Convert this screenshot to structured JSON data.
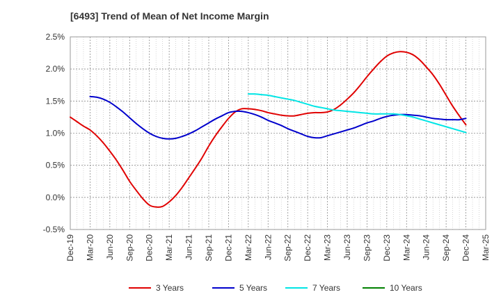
{
  "chart_data": {
    "type": "line",
    "title": "[6493]  Trend of Mean of Net Income Margin",
    "xlabel": "",
    "ylabel": "",
    "categories": [
      "Dec-19",
      "Mar-20",
      "Jun-20",
      "Sep-20",
      "Dec-20",
      "Mar-21",
      "Jun-21",
      "Sep-21",
      "Dec-21",
      "Mar-22",
      "Jun-22",
      "Sep-22",
      "Dec-22",
      "Mar-23",
      "Jun-23",
      "Sep-23",
      "Dec-23",
      "Mar-24",
      "Jun-24",
      "Sep-24",
      "Dec-24",
      "Mar-25"
    ],
    "y_ticks": [
      "-0.5%",
      "0.0%",
      "0.5%",
      "1.0%",
      "1.5%",
      "2.0%",
      "2.5%"
    ],
    "ylim": [
      -0.5,
      2.5
    ],
    "grid": true,
    "legend_position": "bottom",
    "series": [
      {
        "name": "3 Years",
        "color": "#e00000",
        "x": [
          "2019-12",
          "2020-01",
          "2020-02",
          "2020-03",
          "2020-04",
          "2020-05",
          "2020-06",
          "2020-07",
          "2020-08",
          "2020-09",
          "2020-10",
          "2020-11",
          "2020-12",
          "2021-01",
          "2021-02",
          "2021-03",
          "2021-04",
          "2021-05",
          "2021-06",
          "2021-07",
          "2021-08",
          "2021-09",
          "2021-10",
          "2021-11",
          "2021-12",
          "2022-01",
          "2022-02",
          "2022-03",
          "2022-04",
          "2022-05",
          "2022-06",
          "2022-07",
          "2022-08",
          "2022-09",
          "2022-10",
          "2022-11",
          "2022-12",
          "2023-01",
          "2023-02",
          "2023-03",
          "2023-04",
          "2023-05",
          "2023-06",
          "2023-07",
          "2023-08",
          "2023-09",
          "2023-10",
          "2023-11",
          "2023-12",
          "2024-01",
          "2024-02",
          "2024-03",
          "2024-04",
          "2024-05",
          "2024-06",
          "2024-07",
          "2024-08",
          "2024-09",
          "2024-10",
          "2024-11",
          "2024-12"
        ],
        "values": [
          1.25,
          1.18,
          1.11,
          1.05,
          0.96,
          0.85,
          0.72,
          0.58,
          0.42,
          0.25,
          0.11,
          -0.02,
          -0.12,
          -0.15,
          -0.14,
          -0.07,
          0.03,
          0.16,
          0.31,
          0.46,
          0.62,
          0.8,
          0.96,
          1.1,
          1.23,
          1.33,
          1.38,
          1.38,
          1.37,
          1.35,
          1.32,
          1.3,
          1.28,
          1.27,
          1.27,
          1.29,
          1.31,
          1.32,
          1.32,
          1.33,
          1.37,
          1.44,
          1.53,
          1.63,
          1.75,
          1.88,
          2.0,
          2.11,
          2.2,
          2.25,
          2.27,
          2.26,
          2.22,
          2.14,
          2.03,
          1.91,
          1.76,
          1.59,
          1.42,
          1.27,
          1.13
        ]
      },
      {
        "name": "5 Years",
        "color": "#0000cc",
        "x": [
          "2020-03",
          "2020-04",
          "2020-05",
          "2020-06",
          "2020-07",
          "2020-08",
          "2020-09",
          "2020-10",
          "2020-11",
          "2020-12",
          "2021-01",
          "2021-02",
          "2021-03",
          "2021-04",
          "2021-05",
          "2021-06",
          "2021-07",
          "2021-08",
          "2021-09",
          "2021-10",
          "2021-11",
          "2021-12",
          "2022-01",
          "2022-02",
          "2022-03",
          "2022-04",
          "2022-05",
          "2022-06",
          "2022-07",
          "2022-08",
          "2022-09",
          "2022-10",
          "2022-11",
          "2022-12",
          "2023-01",
          "2023-02",
          "2023-03",
          "2023-04",
          "2023-05",
          "2023-06",
          "2023-07",
          "2023-08",
          "2023-09",
          "2023-10",
          "2023-11",
          "2023-12",
          "2024-01",
          "2024-02",
          "2024-03",
          "2024-04",
          "2024-05",
          "2024-06",
          "2024-07",
          "2024-08",
          "2024-09",
          "2024-10",
          "2024-11",
          "2024-12"
        ],
        "values": [
          1.57,
          1.56,
          1.53,
          1.48,
          1.41,
          1.33,
          1.24,
          1.15,
          1.07,
          1.0,
          0.95,
          0.92,
          0.91,
          0.92,
          0.95,
          0.99,
          1.04,
          1.1,
          1.16,
          1.22,
          1.27,
          1.32,
          1.34,
          1.34,
          1.32,
          1.29,
          1.25,
          1.2,
          1.16,
          1.12,
          1.07,
          1.03,
          0.99,
          0.95,
          0.93,
          0.93,
          0.96,
          0.99,
          1.02,
          1.05,
          1.08,
          1.12,
          1.16,
          1.19,
          1.23,
          1.26,
          1.28,
          1.29,
          1.29,
          1.28,
          1.27,
          1.25,
          1.23,
          1.22,
          1.21,
          1.21,
          1.21,
          1.23
        ]
      },
      {
        "name": "7 Years",
        "color": "#00e5e5",
        "x": [
          "2022-03",
          "2022-04",
          "2022-05",
          "2022-06",
          "2022-07",
          "2022-08",
          "2022-09",
          "2022-10",
          "2022-11",
          "2022-12",
          "2023-01",
          "2023-02",
          "2023-03",
          "2023-04",
          "2023-05",
          "2023-06",
          "2023-07",
          "2023-08",
          "2023-09",
          "2023-10",
          "2023-11",
          "2023-12",
          "2024-01",
          "2024-02",
          "2024-03",
          "2024-04",
          "2024-05",
          "2024-06",
          "2024-07",
          "2024-08",
          "2024-09",
          "2024-10",
          "2024-11",
          "2024-12"
        ],
        "values": [
          1.61,
          1.61,
          1.6,
          1.59,
          1.57,
          1.55,
          1.53,
          1.51,
          1.48,
          1.45,
          1.42,
          1.4,
          1.38,
          1.36,
          1.35,
          1.34,
          1.33,
          1.32,
          1.31,
          1.3,
          1.3,
          1.3,
          1.3,
          1.29,
          1.27,
          1.25,
          1.22,
          1.19,
          1.16,
          1.13,
          1.1,
          1.07,
          1.04,
          1.01
        ]
      },
      {
        "name": "10 Years",
        "color": "#008000",
        "x": [],
        "values": []
      }
    ]
  }
}
